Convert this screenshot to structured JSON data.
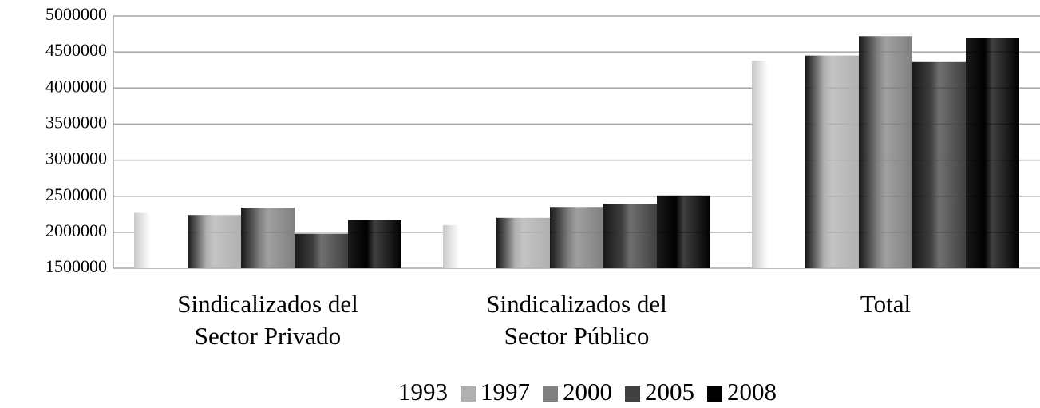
{
  "chart_data": {
    "type": "bar",
    "categories": [
      "Sindicalizados del\nSector Privado",
      "Sindicalizados del\nSector Público",
      "Total"
    ],
    "series": [
      {
        "name": "1993",
        "color": "#ffffff",
        "values": [
          2270000,
          2100000,
          4380000
        ]
      },
      {
        "name": "1997",
        "color": "#b0b0b0",
        "values": [
          2240000,
          2200000,
          4450000
        ]
      },
      {
        "name": "2000",
        "color": "#808080",
        "values": [
          2340000,
          2350000,
          4720000
        ]
      },
      {
        "name": "2005",
        "color": "#404040",
        "values": [
          1980000,
          2390000,
          4360000
        ]
      },
      {
        "name": "2008",
        "color": "#000000",
        "values": [
          2170000,
          2510000,
          4690000
        ]
      }
    ],
    "ylim": [
      1500000,
      5000000
    ],
    "yticks": [
      1500000,
      2000000,
      2500000,
      3000000,
      3500000,
      4000000,
      4500000,
      5000000
    ],
    "grid": true,
    "legend": "bottom"
  }
}
